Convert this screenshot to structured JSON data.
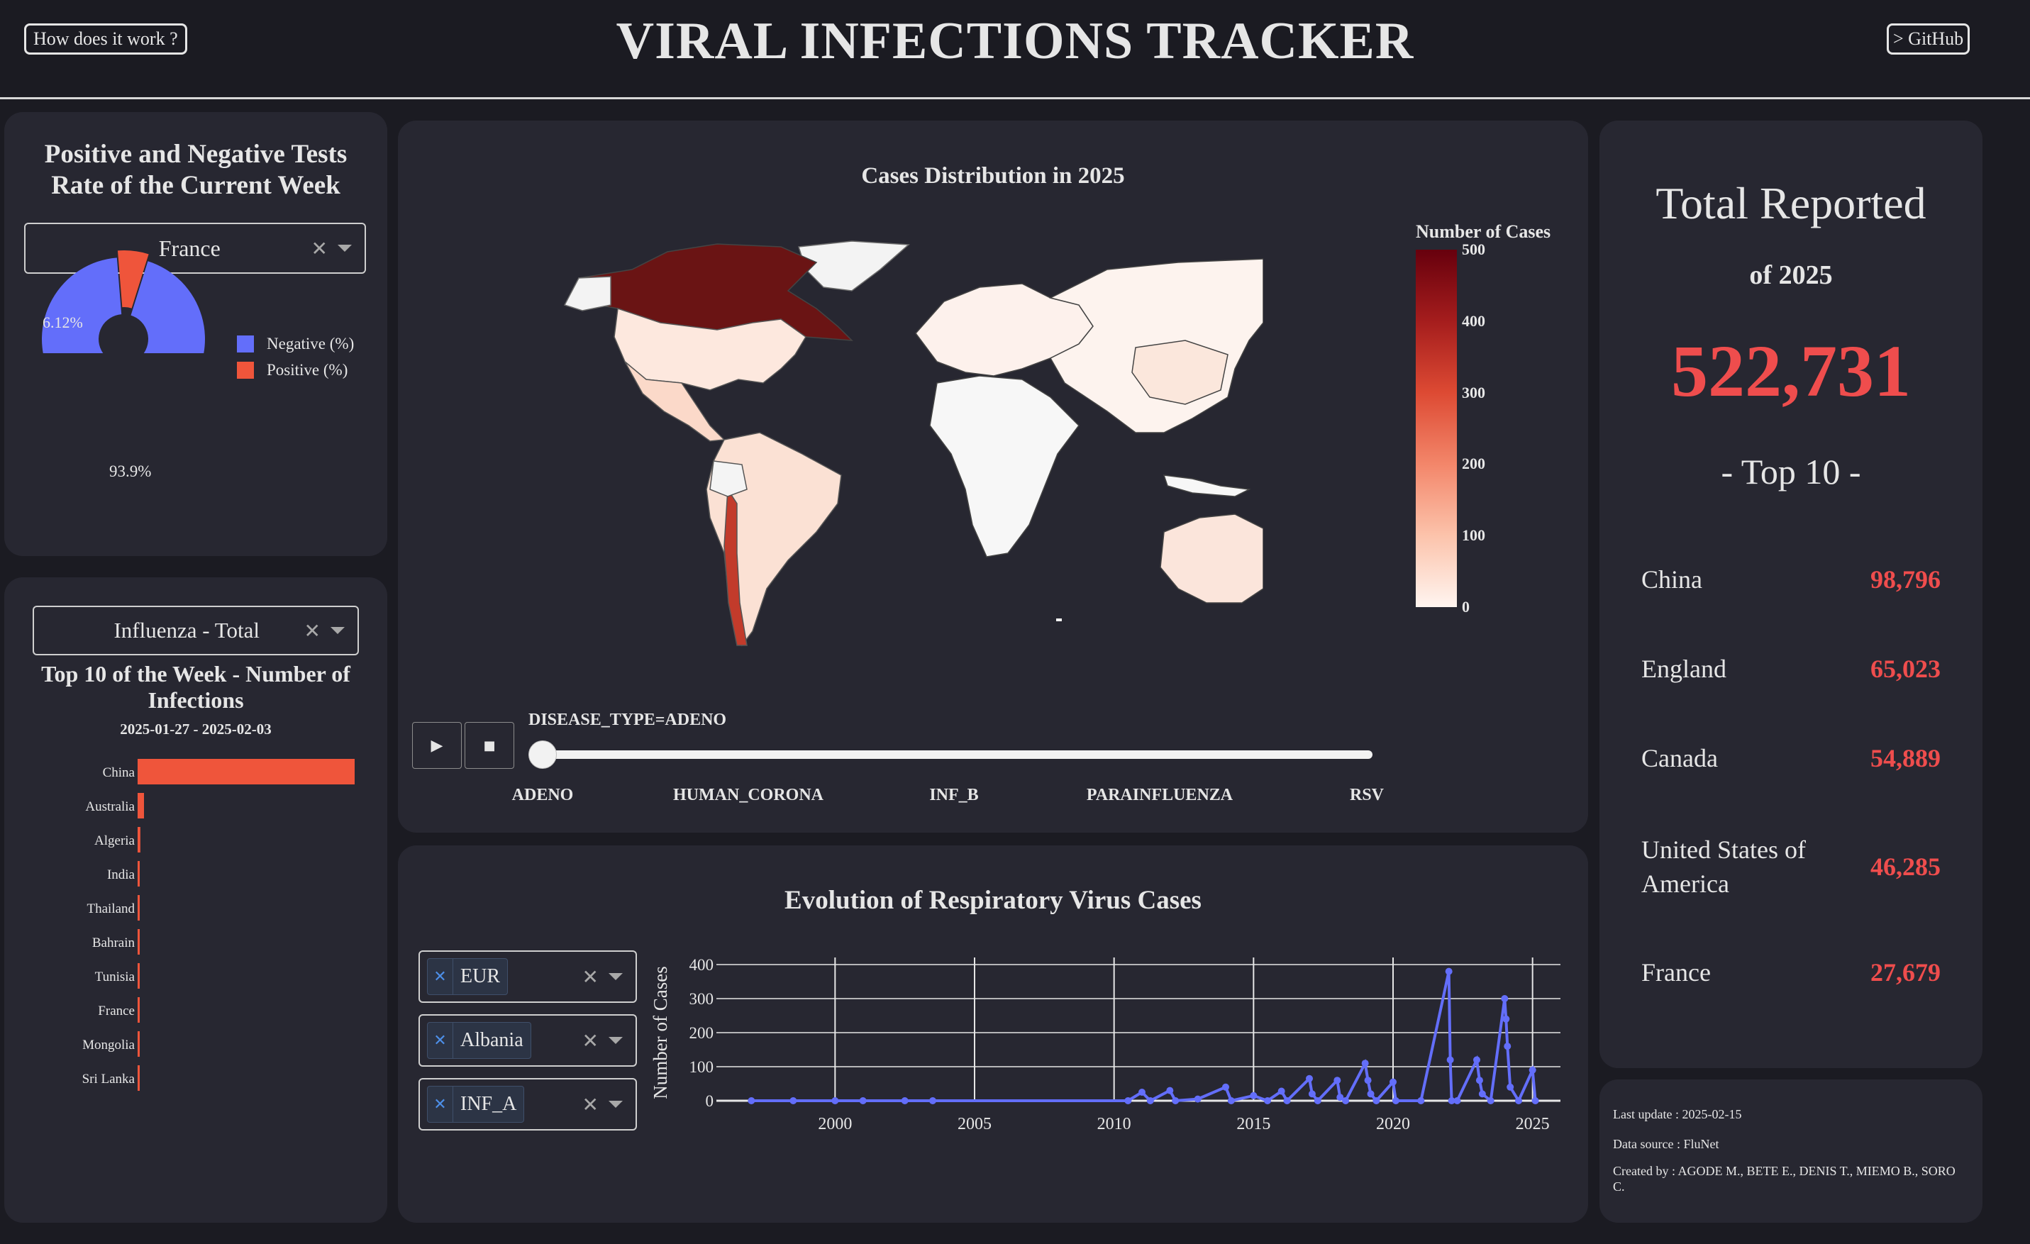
{
  "header": {
    "title": "VIRAL INFECTIONS TRACKER",
    "help_button": "How does it work ?",
    "github_button": "> GitHub"
  },
  "tests_panel": {
    "title_line1": "Positive and Negative Tests",
    "title_line2": "Rate of the Current Week",
    "country_dropdown": "France",
    "legend": [
      "Negative (%)",
      "Positive (%)"
    ],
    "colors": {
      "negative": "#636efa",
      "positive": "#ef553b"
    },
    "negative_label": "93.9%",
    "positive_label": "6.12%"
  },
  "top10_week_panel": {
    "virus_dropdown": "Influenza - Total",
    "title_line1": "Top 10 of the Week - Number of",
    "title_line2": "Infections",
    "date_range": "2025-01-27 - 2025-02-03"
  },
  "map_panel": {
    "title": "Cases Distribution in 2025",
    "colorbar_title": "Number of Cases",
    "colorbar_ticks": [
      "500",
      "400",
      "300",
      "200",
      "100",
      "0"
    ],
    "slider_label": "DISEASE_TYPE=ADENO",
    "slider_steps": [
      "ADENO",
      "HUMAN_CORONA",
      "INF_B",
      "PARAINFLUENZA",
      "RSV"
    ],
    "play_icon": "play-icon",
    "stop_icon": "stop-icon"
  },
  "evolution_panel": {
    "title": "Evolution of Respiratory Virus Cases",
    "filters": {
      "region": "EUR",
      "country": "Albania",
      "virus": "INF_A"
    },
    "ylabel": "Number of Cases"
  },
  "total_panel": {
    "title": "Total Reported",
    "subtitle": "of 2025",
    "total": "522,731",
    "top_label": "- Top 10 -",
    "rows": [
      {
        "name_line1": "China",
        "name_line2": "",
        "value": "98,796"
      },
      {
        "name_line1": "England",
        "name_line2": "",
        "value": "65,023"
      },
      {
        "name_line1": "Canada",
        "name_line2": "",
        "value": "54,889"
      },
      {
        "name_line1": "United States of",
        "name_line2": "America",
        "value": "46,285"
      },
      {
        "name_line1": "France",
        "name_line2": "",
        "value": "27,679"
      }
    ]
  },
  "footer": {
    "last_update": "Last update : 2025-02-15",
    "data_source": "Data source : FluNet",
    "created_by": "Created by : AGODE M., BETE E., DENIS T., MIEMO B., SORO C."
  },
  "chart_data": [
    {
      "type": "pie",
      "title": "",
      "labels": [
        "Negative (%)",
        "Positive (%)"
      ],
      "values": [
        93.9,
        6.12
      ],
      "hole": true
    },
    {
      "type": "bar",
      "orientation": "horizontal",
      "title": "Top 10 of the Week - Number of Infections",
      "categories": [
        "China",
        "Australia",
        "Algeria",
        "India",
        "Thailand",
        "Bahrain",
        "Tunisia",
        "France",
        "Mongolia",
        "Sri Lanka"
      ],
      "values": [
        9500,
        280,
        120,
        60,
        40,
        30,
        25,
        20,
        10,
        5
      ],
      "color": "#ef553b"
    },
    {
      "type": "line",
      "title": "Evolution of Respiratory Virus Cases",
      "ylabel": "Number of Cases",
      "xlim": [
        1996,
        2026
      ],
      "ylim": [
        0,
        400
      ],
      "xticks": [
        2000,
        2005,
        2010,
        2015,
        2020,
        2025
      ],
      "yticks": [
        0,
        100,
        200,
        300,
        400
      ],
      "color": "#636efa",
      "x": [
        1997,
        1998.5,
        2000,
        2001,
        2002.5,
        2003.5,
        2010.5,
        2011,
        2011.3,
        2012,
        2012.2,
        2013,
        2014,
        2014.2,
        2015,
        2015.5,
        2016,
        2016.2,
        2017,
        2017.1,
        2017.3,
        2018,
        2018.1,
        2018.3,
        2019,
        2019.1,
        2019.2,
        2019.4,
        2020,
        2020.1,
        2021,
        2022,
        2022.05,
        2022.1,
        2022.3,
        2023,
        2023.1,
        2023.2,
        2023.5,
        2024,
        2024.05,
        2024.1,
        2024.2,
        2024.5,
        2025,
        2025.1
      ],
      "values": [
        0,
        0,
        0,
        0,
        0,
        0,
        0,
        25,
        0,
        30,
        0,
        5,
        40,
        0,
        15,
        0,
        28,
        0,
        65,
        20,
        0,
        60,
        10,
        0,
        110,
        60,
        20,
        0,
        55,
        0,
        0,
        380,
        120,
        0,
        0,
        120,
        60,
        20,
        0,
        300,
        240,
        160,
        40,
        0,
        90,
        0
      ]
    },
    {
      "type": "heatmap",
      "title": "Cases Distribution in 2025",
      "colorbar_title": "Number of Cases",
      "zlim": [
        0,
        500
      ]
    }
  ]
}
